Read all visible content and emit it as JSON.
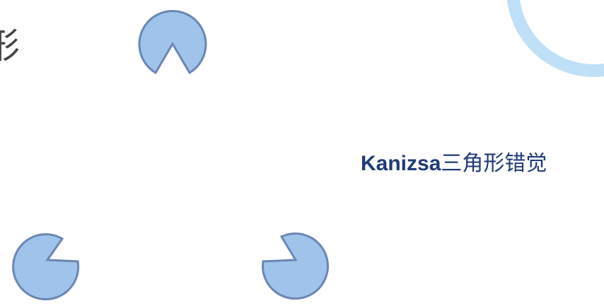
{
  "slide": {
    "caption_latin": "Kanizsa",
    "caption_cjk": "三角形错觉",
    "partial_glyph": "形"
  },
  "colors": {
    "pacman_fill": "#9fc3ea",
    "pacman_stroke": "#6b86b3",
    "caption_latin": "#1f3b78",
    "caption_cjk": "#1f3b78",
    "ring": "#bfe0f7",
    "partial_glyph": "#444444"
  },
  "figure": {
    "type": "kanizsa-triangle",
    "inducers": [
      {
        "name": "top",
        "notch": "bottom"
      },
      {
        "name": "bottom-left",
        "notch": "right"
      },
      {
        "name": "bottom-right",
        "notch": "left"
      }
    ]
  }
}
